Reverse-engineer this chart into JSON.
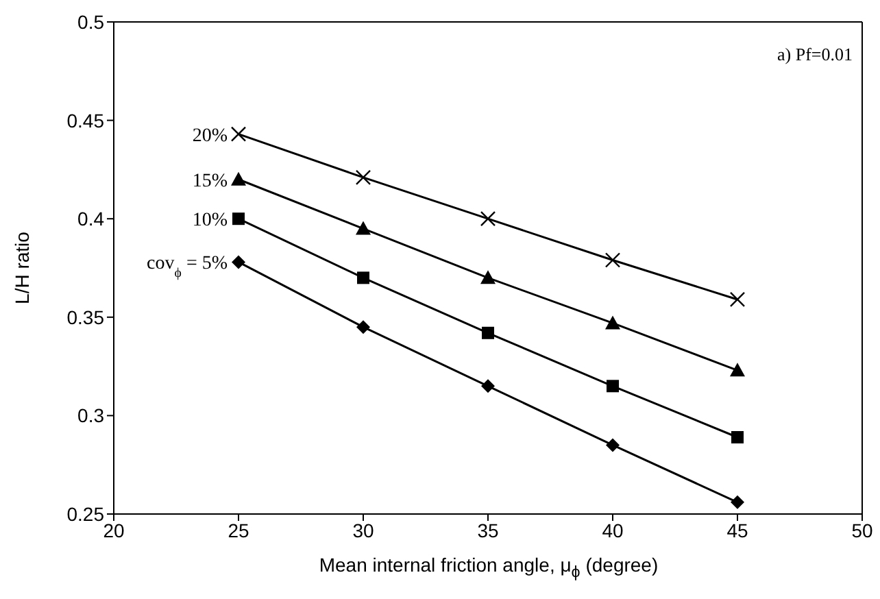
{
  "chart_data": {
    "type": "line",
    "xlabel": "Mean internal friction angle, μ$_{ϕ}$ (degree)",
    "ylabel": "L/H ratio",
    "annotations": [
      "a) Pf=0.01"
    ],
    "x": [
      25,
      30,
      35,
      40,
      45
    ],
    "series": [
      {
        "name": "cov$_{ϕ}$ = 5%",
        "color": "#000000",
        "marker": "diamond",
        "values": [
          0.378,
          0.345,
          0.315,
          0.285,
          0.256
        ]
      },
      {
        "name": "10%",
        "color": "#000000",
        "marker": "square",
        "values": [
          0.4,
          0.37,
          0.342,
          0.315,
          0.289
        ]
      },
      {
        "name": "15%",
        "color": "#000000",
        "marker": "triangle",
        "values": [
          0.42,
          0.395,
          0.37,
          0.347,
          0.323
        ]
      },
      {
        "name": "20%",
        "color": "#000000",
        "marker": "cross",
        "values": [
          0.443,
          0.421,
          0.4,
          0.379,
          0.359
        ]
      }
    ],
    "xlim": [
      20,
      50
    ],
    "xticks": [
      20,
      25,
      30,
      35,
      40,
      45,
      50
    ],
    "ylim": [
      0.25,
      0.5
    ],
    "yticks": [
      0.25,
      0.3,
      0.35,
      0.4,
      0.45,
      0.5
    ],
    "grid": false,
    "legend": false,
    "line_style": "solid"
  }
}
